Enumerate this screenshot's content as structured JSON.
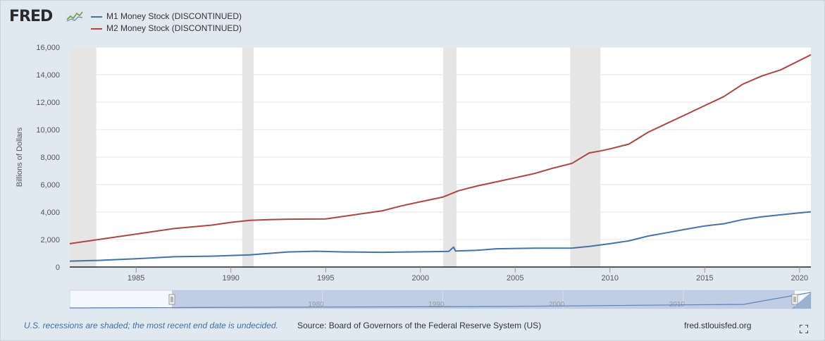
{
  "logo": {
    "text": "FRED",
    "icon": "fred-chart-icon"
  },
  "colors": {
    "m1": "#4572a7",
    "m2": "#aa4643",
    "recession": "#e5e5e5",
    "navigator_mask": "#b7c6e0"
  },
  "chart_data": {
    "type": "line",
    "ylabel": "Billions of Dollars",
    "ylim": [
      0,
      16000
    ],
    "xlim": [
      1981.5,
      2020.6
    ],
    "yticks": [
      "0",
      "2,000",
      "4,000",
      "6,000",
      "8,000",
      "10,000",
      "12,000",
      "14,000",
      "16,000"
    ],
    "xticks": [
      "1985",
      "1990",
      "1995",
      "2000",
      "2005",
      "2010",
      "2015",
      "2020"
    ],
    "recessions": [
      [
        1981.5,
        1982.9
      ],
      [
        1990.6,
        1991.2
      ],
      [
        2001.2,
        2001.9
      ],
      [
        2007.9,
        2009.5
      ]
    ],
    "series": [
      {
        "name": "M1 Money Stock (DISCONTINUED)",
        "x": [
          1981.5,
          1983,
          1985,
          1987,
          1989,
          1991,
          1993,
          1994.5,
          1996,
          1998,
          2000,
          2001.5,
          2001.75,
          2001.85,
          2003,
          2004,
          2006,
          2008,
          2008.9,
          2010,
          2011,
          2012,
          2013,
          2014,
          2015,
          2016,
          2017,
          2018,
          2019,
          2020.6
        ],
        "values": [
          430,
          480,
          600,
          750,
          790,
          880,
          1100,
          1150,
          1100,
          1070,
          1110,
          1140,
          1450,
          1170,
          1220,
          1330,
          1370,
          1380,
          1500,
          1700,
          1900,
          2250,
          2500,
          2750,
          2990,
          3150,
          3450,
          3650,
          3800,
          4020
        ]
      },
      {
        "name": "M2 Money Stock (DISCONTINUED)",
        "x": [
          1981.5,
          1983,
          1985,
          1987,
          1989,
          1990,
          1991,
          1992,
          1993,
          1995,
          1996,
          1998,
          1999,
          2000,
          2001.2,
          2002,
          2003,
          2004,
          2005,
          2006,
          2007,
          2008,
          2008.9,
          2009.5,
          2010,
          2011,
          2012,
          2013,
          2014,
          2015,
          2016,
          2017,
          2018,
          2019,
          2020.6
        ],
        "values": [
          1700,
          2000,
          2400,
          2800,
          3050,
          3250,
          3400,
          3450,
          3480,
          3500,
          3700,
          4100,
          4450,
          4750,
          5100,
          5550,
          5900,
          6200,
          6500,
          6800,
          7200,
          7550,
          8300,
          8450,
          8600,
          8950,
          9800,
          10450,
          11100,
          11750,
          12400,
          13300,
          13900,
          14350,
          15450
        ]
      }
    ],
    "navigator": {
      "xticks": [
        "1980",
        "1990",
        "2000",
        "2010"
      ],
      "x_values": [
        1980,
        1990,
        2000,
        2010
      ]
    }
  },
  "footer": {
    "recession_note": "U.S. recessions are shaded; the most recent end date is undecided.",
    "source": "Source: Board of Governors of the Federal Reserve System (US)",
    "link": "fred.stlouisfed.org",
    "fullscreen_icon": "fullscreen-icon"
  }
}
